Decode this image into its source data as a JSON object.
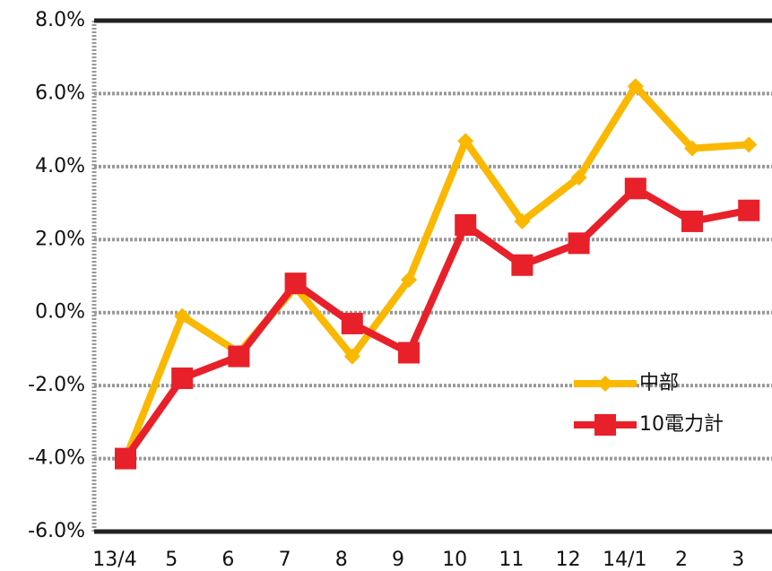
{
  "chart_data": {
    "type": "line",
    "categories": [
      "13/4",
      "5",
      "6",
      "7",
      "8",
      "9",
      "10",
      "11",
      "12",
      "14/1",
      "2",
      "3"
    ],
    "series": [
      {
        "name": "中部",
        "color": "#fbb800",
        "marker": "diamond",
        "values": [
          -4.0,
          -0.1,
          -1.1,
          0.7,
          -1.2,
          0.9,
          4.7,
          2.5,
          3.7,
          6.2,
          4.5,
          4.6
        ]
      },
      {
        "name": "10電力計",
        "color": "#e8202a",
        "marker": "square",
        "values": [
          -4.0,
          -1.8,
          -1.2,
          0.8,
          -0.3,
          -1.1,
          2.4,
          1.3,
          1.9,
          3.4,
          2.5,
          2.8
        ]
      }
    ],
    "ylim": [
      -6,
      8
    ],
    "yticks": [
      {
        "value": -6,
        "label": "-6.0%"
      },
      {
        "value": -4,
        "label": "-4.0%"
      },
      {
        "value": -2,
        "label": "-2.0%"
      },
      {
        "value": 0,
        "label": "0.0%"
      },
      {
        "value": 2,
        "label": "2.0%"
      },
      {
        "value": 4,
        "label": "4.0%"
      },
      {
        "value": 6,
        "label": "6.0%"
      },
      {
        "value": 8,
        "label": "8.0%"
      }
    ],
    "grid": true,
    "legend": "right"
  }
}
